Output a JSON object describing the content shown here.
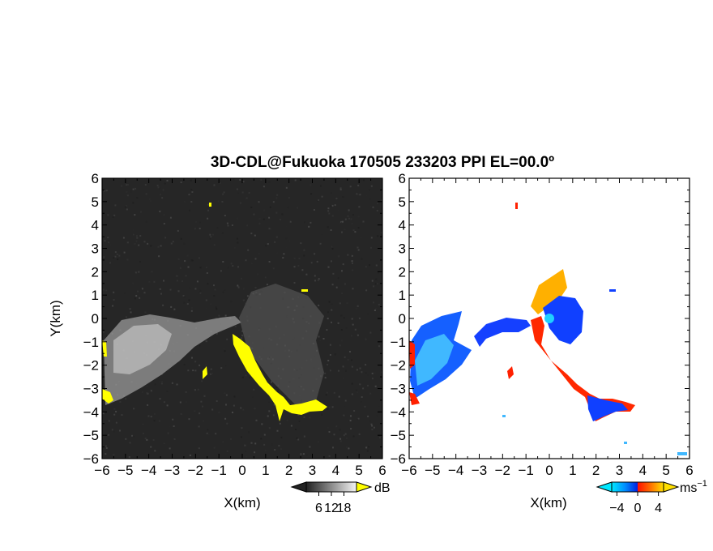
{
  "title": "3D-CDL@Fukuoka 170505 233203 PPI EL=00.0º",
  "colors": {
    "background": "#ffffff",
    "frame": "#000000",
    "echo_dark": "#1e1e1e",
    "echo_highlight": "#ffff00",
    "velocity_negative": [
      "#00e0ff",
      "#0080ff",
      "#0030ff"
    ],
    "velocity_positive": [
      "#ff2000",
      "#ff8000",
      "#ffd000"
    ]
  },
  "chart_data": [
    {
      "type": "heatmap",
      "panel": "left",
      "quantity": "SNR",
      "xlabel": "X(km)",
      "ylabel": "Y(km)",
      "xlim": [
        -6,
        6
      ],
      "ylim": [
        -6,
        6
      ],
      "x_ticks": [
        -6,
        -5,
        -4,
        -3,
        -2,
        -1,
        0,
        1,
        2,
        3,
        4,
        5,
        6
      ],
      "y_ticks": [
        -6,
        -5,
        -4,
        -3,
        -2,
        -1,
        0,
        1,
        2,
        3,
        4,
        5,
        6
      ],
      "grid": false,
      "colorbar": {
        "unit": "dB",
        "ticks": [
          6,
          12,
          18
        ],
        "palette": "grayscale",
        "extend": "both",
        "placement": "bottom-right"
      }
    },
    {
      "type": "heatmap",
      "panel": "right",
      "quantity": "radial velocity",
      "xlabel": "X(km)",
      "ylabel": "",
      "xlim": [
        -6,
        6
      ],
      "ylim": [
        -6,
        6
      ],
      "x_ticks": [
        -6,
        -5,
        -4,
        -3,
        -2,
        -1,
        0,
        1,
        2,
        3,
        4,
        5,
        6
      ],
      "y_ticks": [
        -6,
        -5,
        -4,
        -3,
        -2,
        -1,
        0,
        1,
        2,
        3,
        4,
        5,
        6
      ],
      "grid": false,
      "colorbar": {
        "unit": "ms",
        "unit_exponent": "−1",
        "ticks": [
          -4,
          0,
          4
        ],
        "palette": "cyan-blue-red-yellow",
        "extend": "both",
        "placement": "bottom-right"
      }
    }
  ]
}
